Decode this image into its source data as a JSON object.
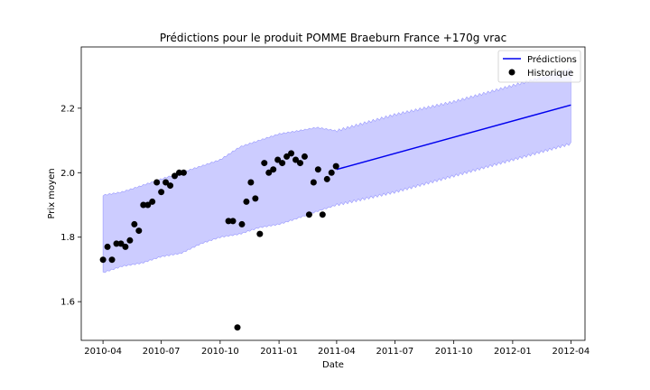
{
  "chart_data": {
    "type": "line",
    "title": "Prédictions pour le produit POMME Braeburn France +170g vrac",
    "xlabel": "Date",
    "ylabel": "Prix moyen",
    "x_is_date": true,
    "xlim": [
      "2010-02-26",
      "2012-04-23"
    ],
    "ylim": [
      1.48,
      2.39
    ],
    "x_ticks": [
      "2010-04-01",
      "2010-07-01",
      "2010-10-01",
      "2011-01-01",
      "2011-04-01",
      "2011-07-01",
      "2011-10-01",
      "2012-01-01",
      "2012-04-01"
    ],
    "x_tick_labels": [
      "2010-04",
      "2010-07",
      "2010-10",
      "2011-01",
      "2011-04",
      "2011-07",
      "2011-10",
      "2012-01",
      "2012-04"
    ],
    "y_ticks": [
      1.6,
      1.8,
      2.0,
      2.2
    ],
    "y_tick_labels": [
      "1.6",
      "1.8",
      "2.0",
      "2.2"
    ],
    "legend_position": "top-right",
    "colors": {
      "line": "#0000ee",
      "band": "#ccccff",
      "band_edge": "#9999ff",
      "points": "#000000"
    },
    "series": [
      {
        "name": "Prédictions",
        "kind": "line",
        "x": [
          "2011-04-01",
          "2012-04-01"
        ],
        "y": [
          2.01,
          2.21
        ]
      },
      {
        "name": "Historique",
        "kind": "scatter",
        "x": [
          "2010-04-01",
          "2010-04-08",
          "2010-04-15",
          "2010-04-22",
          "2010-04-29",
          "2010-05-06",
          "2010-05-13",
          "2010-05-20",
          "2010-05-27",
          "2010-06-03",
          "2010-06-10",
          "2010-06-17",
          "2010-06-24",
          "2010-07-01",
          "2010-07-08",
          "2010-07-15",
          "2010-07-22",
          "2010-07-29",
          "2010-08-05",
          "2010-10-14",
          "2010-10-21",
          "2010-10-28",
          "2010-11-04",
          "2010-11-11",
          "2010-11-18",
          "2010-11-25",
          "2010-12-02",
          "2010-12-09",
          "2010-12-16",
          "2010-12-23",
          "2010-12-30",
          "2011-01-06",
          "2011-01-13",
          "2011-01-20",
          "2011-01-27",
          "2011-02-03",
          "2011-02-10",
          "2011-02-17",
          "2011-02-24",
          "2011-03-03",
          "2011-03-10",
          "2011-03-17",
          "2011-03-24",
          "2011-03-31"
        ],
        "y": [
          1.73,
          1.77,
          1.73,
          1.78,
          1.78,
          1.77,
          1.79,
          1.84,
          1.82,
          1.9,
          1.9,
          1.91,
          1.97,
          1.94,
          1.97,
          1.96,
          1.99,
          2.0,
          2.0,
          1.85,
          1.85,
          1.52,
          1.84,
          1.91,
          1.97,
          1.92,
          1.81,
          2.03,
          2.0,
          2.01,
          2.04,
          2.03,
          2.05,
          2.06,
          2.04,
          2.03,
          2.05,
          1.87,
          1.97,
          2.01,
          1.87,
          1.98,
          2.0,
          2.02
        ]
      }
    ],
    "band": {
      "x": [
        "2010-04-01",
        "2010-05-01",
        "2010-06-01",
        "2010-07-01",
        "2010-08-01",
        "2010-09-01",
        "2010-10-01",
        "2010-11-01",
        "2010-12-01",
        "2011-01-01",
        "2011-02-01",
        "2011-03-01",
        "2011-04-01",
        "2011-07-01",
        "2011-10-01",
        "2012-01-01",
        "2012-04-01"
      ],
      "lower": [
        1.69,
        1.71,
        1.72,
        1.74,
        1.75,
        1.78,
        1.8,
        1.81,
        1.83,
        1.84,
        1.86,
        1.88,
        1.9,
        1.94,
        1.99,
        2.04,
        2.09
      ],
      "upper": [
        1.93,
        1.94,
        1.96,
        1.98,
        2.0,
        2.02,
        2.04,
        2.08,
        2.1,
        2.12,
        2.13,
        2.14,
        2.13,
        2.18,
        2.22,
        2.27,
        2.32
      ]
    }
  }
}
